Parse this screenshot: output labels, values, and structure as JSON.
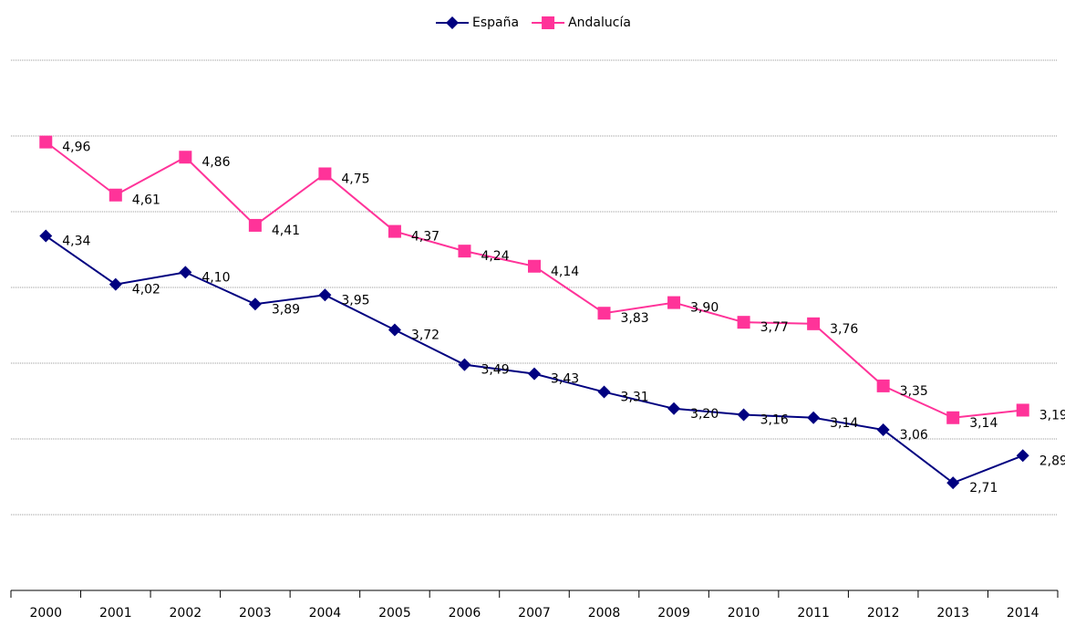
{
  "chart_data": {
    "type": "line",
    "categories": [
      "2000",
      "2001",
      "2002",
      "2003",
      "2004",
      "2005",
      "2006",
      "2007",
      "2008",
      "2009",
      "2010",
      "2011",
      "2012",
      "2013",
      "2014"
    ],
    "series": [
      {
        "name": "España",
        "color": "#000080",
        "marker": "diamond",
        "values": [
          4.34,
          4.02,
          4.1,
          3.89,
          3.95,
          3.72,
          3.49,
          3.43,
          3.31,
          3.2,
          3.16,
          3.14,
          3.06,
          2.71,
          2.89
        ],
        "value_labels": [
          "4,34",
          "4,02",
          "4,10",
          "3,89",
          "3,95",
          "3,72",
          "3,49",
          "3,43",
          "3,31",
          "3,20",
          "3,16",
          "3,14",
          "3,06",
          "2,71",
          "2,89"
        ]
      },
      {
        "name": "Andalucía",
        "color": "#ff3399",
        "marker": "square",
        "values": [
          4.96,
          4.61,
          4.86,
          4.41,
          4.75,
          4.37,
          4.24,
          4.14,
          3.83,
          3.9,
          3.77,
          3.76,
          3.35,
          3.14,
          3.19
        ],
        "value_labels": [
          "4,96",
          "4,61",
          "4,86",
          "4,41",
          "4,75",
          "4,37",
          "4,24",
          "4,14",
          "3,83",
          "3,90",
          "3,77",
          "3,76",
          "3,35",
          "3,14",
          "3,19"
        ]
      }
    ],
    "ylim": [
      2,
      5.5
    ],
    "yticks": [
      2,
      2.5,
      3,
      3.5,
      4,
      4.5,
      5,
      5.5
    ],
    "grid": true,
    "legend": "top"
  }
}
